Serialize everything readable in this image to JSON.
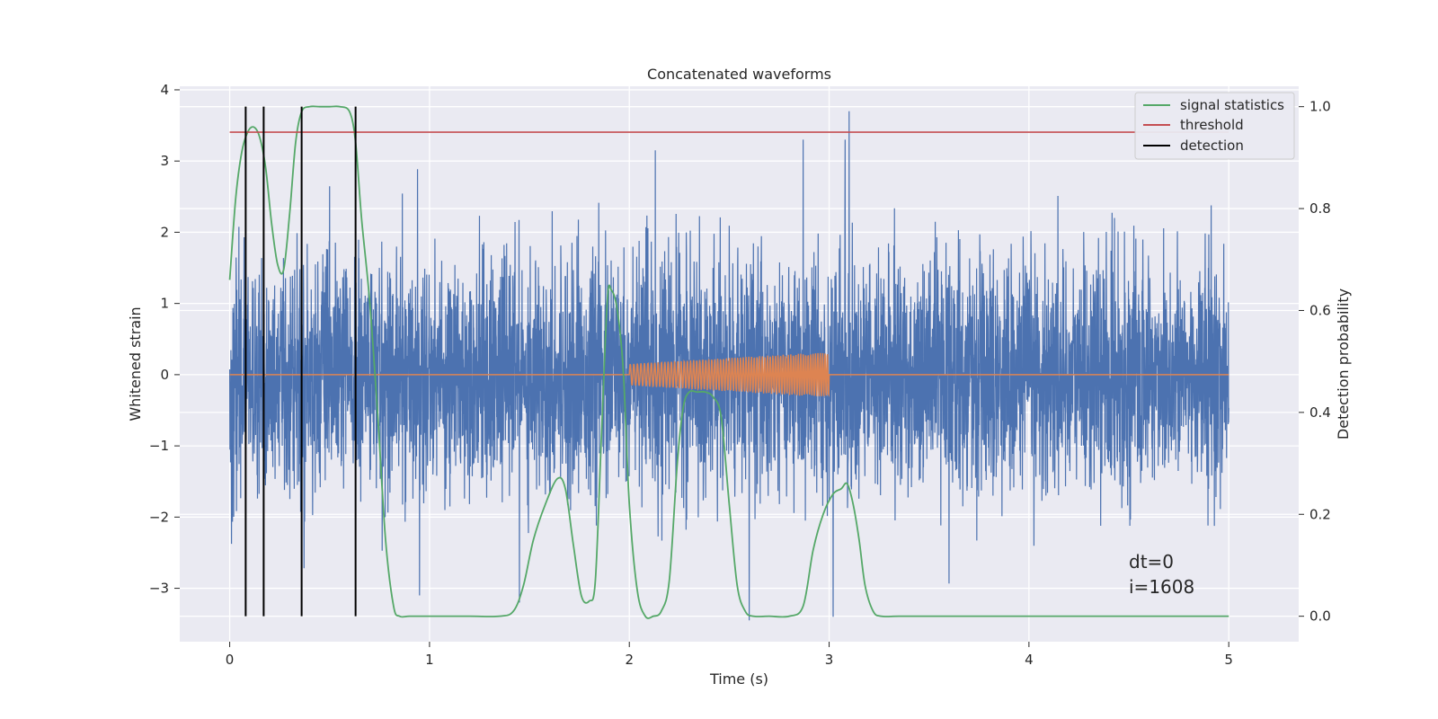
{
  "chart_data": {
    "type": "line",
    "title": "Concatenated waveforms",
    "xlabel": "Time (s)",
    "ylabel_left": "Whitened strain",
    "ylabel_right": "Detection probability",
    "xlim": [
      -0.25,
      5.35
    ],
    "ylim_left": [
      -3.75,
      4.05
    ],
    "ylim_right": [
      -0.05,
      1.04
    ],
    "x_ticks": [
      0,
      1,
      2,
      3,
      4,
      5
    ],
    "y_ticks_left": [
      -3,
      -2,
      -1,
      0,
      1,
      2,
      3,
      4
    ],
    "y_ticks_right": [
      0.0,
      0.2,
      0.4,
      0.6,
      0.8,
      1.0
    ],
    "x_tick_labels": [
      "0",
      "1",
      "2",
      "3",
      "4",
      "5"
    ],
    "y_tick_labels_left": [
      "−3",
      "−2",
      "−1",
      "0",
      "1",
      "2",
      "3",
      "4"
    ],
    "y_tick_labels_right": [
      "0.0",
      "0.2",
      "0.4",
      "0.6",
      "0.8",
      "1.0"
    ],
    "grid": true,
    "legend_position": "top-right",
    "series": [
      {
        "name": "",
        "kind": "whitened strain noise",
        "axis": "left",
        "color": "#4c72b0",
        "x_range": [
          0,
          5
        ],
        "typical_amplitude": 1.0,
        "peak_max": 3.7,
        "peak_min": -3.45,
        "notable_peaks": [
          {
            "x": 3.1,
            "y": 3.7
          },
          {
            "x": 0.63,
            "y": 3.4
          },
          {
            "x": 3.08,
            "y": 3.3
          },
          {
            "x": 2.87,
            "y": 3.3
          },
          {
            "x": 2.13,
            "y": 3.15
          },
          {
            "x": 2.6,
            "y": -3.45
          },
          {
            "x": 3.02,
            "y": -3.4
          },
          {
            "x": 0.95,
            "y": -3.1
          },
          {
            "x": 1.45,
            "y": -3.2
          }
        ]
      },
      {
        "name": "",
        "kind": "injected chirp",
        "axis": "left",
        "color": "#dd8452",
        "x_range": [
          0,
          5
        ],
        "chirp_start": 2.0,
        "chirp_end": 3.0,
        "amplitude_start": 0.15,
        "amplitude_end": 0.32
      },
      {
        "name": "signal statistics",
        "axis": "right",
        "color": "#55a868",
        "x": [
          0,
          0.03,
          0.06,
          0.09,
          0.12,
          0.15,
          0.18,
          0.21,
          0.24,
          0.27,
          0.3,
          0.33,
          0.36,
          0.4,
          0.45,
          0.5,
          0.55,
          0.6,
          0.63,
          0.66,
          0.7,
          0.74,
          0.78,
          0.82,
          0.85,
          0.9,
          1.0,
          1.2,
          1.35,
          1.42,
          1.47,
          1.52,
          1.58,
          1.64,
          1.68,
          1.72,
          1.76,
          1.8,
          1.83,
          1.86,
          1.89,
          1.91,
          1.94,
          1.97,
          2.0,
          2.04,
          2.08,
          2.12,
          2.16,
          2.2,
          2.24,
          2.27,
          2.3,
          2.34,
          2.38,
          2.42,
          2.46,
          2.5,
          2.54,
          2.58,
          2.62,
          2.7,
          2.8,
          2.87,
          2.92,
          2.97,
          3.02,
          3.06,
          3.09,
          3.12,
          3.15,
          3.18,
          3.22,
          3.26,
          3.35,
          3.5,
          3.7,
          3.8,
          4.0,
          4.5,
          5.0
        ],
        "y": [
          0.66,
          0.82,
          0.91,
          0.95,
          0.96,
          0.94,
          0.88,
          0.77,
          0.69,
          0.68,
          0.79,
          0.93,
          0.99,
          1.0,
          1.0,
          1.0,
          1.0,
          0.99,
          0.93,
          0.78,
          0.62,
          0.4,
          0.15,
          0.02,
          0.0,
          0.0,
          0.0,
          0.0,
          0.0,
          0.01,
          0.06,
          0.15,
          0.22,
          0.27,
          0.25,
          0.14,
          0.04,
          0.03,
          0.07,
          0.35,
          0.62,
          0.64,
          0.6,
          0.48,
          0.22,
          0.05,
          0.0,
          0.0,
          0.01,
          0.07,
          0.3,
          0.41,
          0.44,
          0.44,
          0.44,
          0.43,
          0.39,
          0.22,
          0.06,
          0.01,
          0.0,
          0.0,
          0.0,
          0.02,
          0.13,
          0.2,
          0.24,
          0.25,
          0.26,
          0.22,
          0.15,
          0.06,
          0.01,
          0.0,
          0.0,
          0.0,
          0.0,
          0.0,
          0.0,
          0.0,
          0.0
        ]
      },
      {
        "name": "threshold",
        "axis": "right",
        "color": "#c44e52",
        "x": [
          0,
          5
        ],
        "y": [
          0.95,
          0.95
        ]
      },
      {
        "name": "detection",
        "axis": "right",
        "color": "#000000",
        "type": "vlines",
        "x": [
          0.08,
          0.17,
          0.36,
          0.63
        ],
        "y_range": [
          0.0,
          1.0
        ]
      }
    ],
    "annotations": [
      "dt=0",
      "i=1608"
    ]
  }
}
